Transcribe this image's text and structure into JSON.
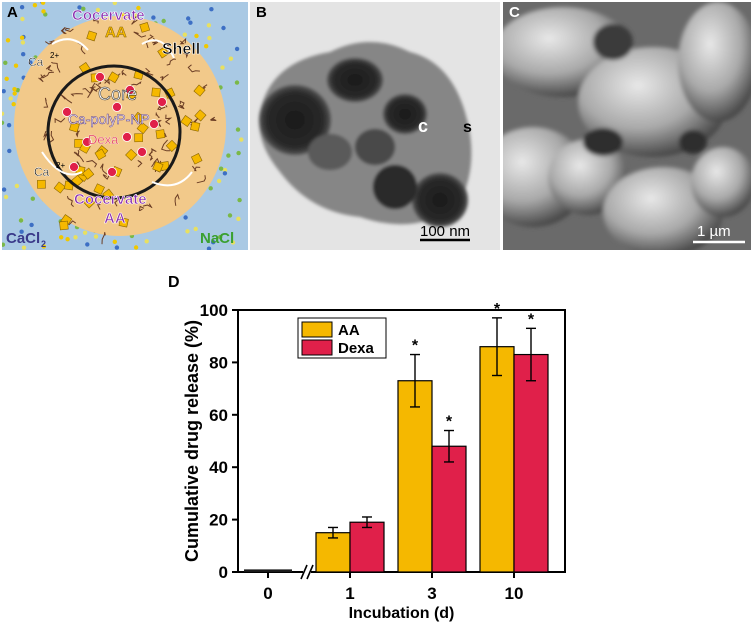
{
  "panelA": {
    "label": "A",
    "cocervate_top": "Cocervate",
    "aa_top": "AA",
    "shell": "Shell",
    "ca_top": "Ca",
    "ca_bottom": "Ca",
    "charge": "2+",
    "core": "Core",
    "np": "Ca-polyP-NP",
    "dexa": "Dexa",
    "cocervate_bottom": "Cocervate",
    "aa_bottom": "AA",
    "cacl": "CaCl",
    "cacl_sub": "2",
    "nacl": "NaCl",
    "colors": {
      "background": "#a9c9e4",
      "shell": "#f2c98a",
      "aa": "#f5b800",
      "dexa": "#e0204a",
      "text_purple": "#8b2fb0"
    }
  },
  "panelB": {
    "label": "B",
    "core_marker": "c",
    "shell_marker": "s",
    "scale": "100 nm"
  },
  "panelC": {
    "label": "C",
    "scale": "1 µm"
  },
  "panelD": {
    "label": "D"
  },
  "chart_data": {
    "type": "bar",
    "categories": [
      "0",
      "1",
      "3",
      "10"
    ],
    "series": [
      {
        "name": "AA",
        "color": "#f5b800",
        "values": [
          1,
          15,
          73,
          86
        ],
        "errors": [
          0,
          2,
          10,
          11
        ],
        "significant": [
          false,
          false,
          true,
          true
        ]
      },
      {
        "name": "Dexa",
        "color": "#e0204a",
        "values": [
          null,
          19,
          48,
          83
        ],
        "errors": [
          0,
          2,
          6,
          10
        ],
        "significant": [
          false,
          false,
          true,
          true
        ]
      }
    ],
    "xlabel": "Incubation (d)",
    "ylabel": "Cumulative drug release (%)",
    "ylim": [
      0,
      100
    ],
    "yticks": [
      "0",
      "20",
      "40",
      "60",
      "80",
      "100"
    ],
    "significance_mark": "*",
    "legend_position": "top-left",
    "axis_break": true
  }
}
